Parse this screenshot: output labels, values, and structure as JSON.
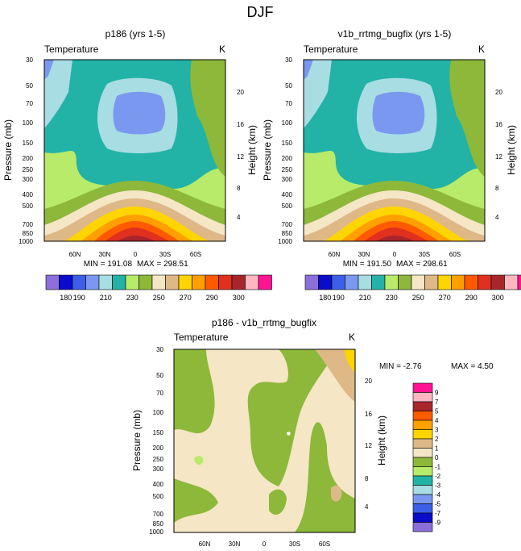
{
  "page_title": "DJF",
  "chart_data": [
    {
      "type": "contour",
      "title": "p186 (yrs 1-5)",
      "field_label": "Temperature",
      "units": "K",
      "ylabel": "Pressure (mb)",
      "ylabel_right": "Height (km)",
      "pressure_ticks": [
        "30",
        "50",
        "70",
        "100",
        "150",
        "200",
        "250",
        "300",
        "400",
        "500",
        "700",
        "850",
        "1000"
      ],
      "height_ticks": [
        "20",
        "16",
        "12",
        "8",
        "4"
      ],
      "lat_ticks": [
        "60N",
        "30N",
        "0",
        "30S",
        "60S"
      ],
      "min_label": "MIN = 191.08",
      "max_label": "MAX = 298.51",
      "levels": [
        180,
        185,
        190,
        195,
        200,
        205,
        210,
        215,
        220,
        225,
        230,
        235,
        240,
        245,
        250,
        255,
        260,
        265,
        270,
        275,
        280,
        285,
        290,
        295,
        300
      ],
      "colorbar_labels": [
        "180",
        "190",
        "210",
        "230",
        "250",
        "270",
        "290",
        "300"
      ],
      "colors": [
        "#8c6fd9",
        "#0b0bcc",
        "#3c5ee8",
        "#7b98f0",
        "#a8dde3",
        "#22b3a6",
        "#b8eb6a",
        "#8db83a",
        "#f5e6c5",
        "#deb887",
        "#ffd500",
        "#ffa000",
        "#ff5a00",
        "#e0301e",
        "#a8262b",
        "#ffb6c1",
        "#ff1493"
      ]
    },
    {
      "type": "contour",
      "title": "v1b_rrtmg_bugfix (yrs 1-5)",
      "field_label": "Temperature",
      "units": "K",
      "ylabel": "Pressure (mb)",
      "ylabel_right": "Height (km)",
      "pressure_ticks": [
        "30",
        "50",
        "70",
        "100",
        "150",
        "200",
        "250",
        "300",
        "400",
        "500",
        "700",
        "850",
        "1000"
      ],
      "height_ticks": [
        "20",
        "16",
        "12",
        "8",
        "4"
      ],
      "lat_ticks": [
        "60N",
        "30N",
        "0",
        "30S",
        "60S"
      ],
      "min_label": "MIN = 191.50",
      "max_label": "MAX = 298.61",
      "levels": [
        180,
        185,
        190,
        195,
        200,
        205,
        210,
        215,
        220,
        225,
        230,
        235,
        240,
        245,
        250,
        255,
        260,
        265,
        270,
        275,
        280,
        285,
        290,
        295,
        300
      ],
      "colorbar_labels": [
        "180",
        "190",
        "210",
        "230",
        "250",
        "270",
        "290",
        "300"
      ]
    },
    {
      "type": "contour",
      "title": "p186 - v1b_rrtmg_bugfix",
      "field_label": "Temperature",
      "units": "K",
      "ylabel": "Pressure (mb)",
      "ylabel_right": "Height (km)",
      "pressure_ticks": [
        "30",
        "50",
        "70",
        "100",
        "150",
        "200",
        "250",
        "300",
        "400",
        "500",
        "700",
        "850",
        "1000"
      ],
      "height_ticks": [
        "20",
        "16",
        "12",
        "8",
        "4"
      ],
      "lat_ticks": [
        "60N",
        "30N",
        "0",
        "30S",
        "60S"
      ],
      "min_label": "MIN =  -2.76",
      "max_label": "MAX =   4.50",
      "levels": [
        -9,
        -7,
        -5,
        -4,
        -3,
        -2,
        -1,
        0,
        1,
        2,
        3,
        4,
        5,
        7,
        9
      ],
      "colorbar_labels": [
        "9",
        "7",
        "5",
        "4",
        "3",
        "2",
        "1",
        "0",
        "-1",
        "-2",
        "-3",
        "-4",
        "-5",
        "-7",
        "-9"
      ],
      "colors_top_to_bottom": [
        "#ff1493",
        "#ffb6c1",
        "#a8262b",
        "#ff5a00",
        "#ffa000",
        "#ffd500",
        "#deb887",
        "#f5e6c5",
        "#8db83a",
        "#b8eb6a",
        "#22b3a6",
        "#a8dde3",
        "#7b98f0",
        "#3c5ee8",
        "#0b0bcc",
        "#8c6fd9"
      ]
    }
  ]
}
